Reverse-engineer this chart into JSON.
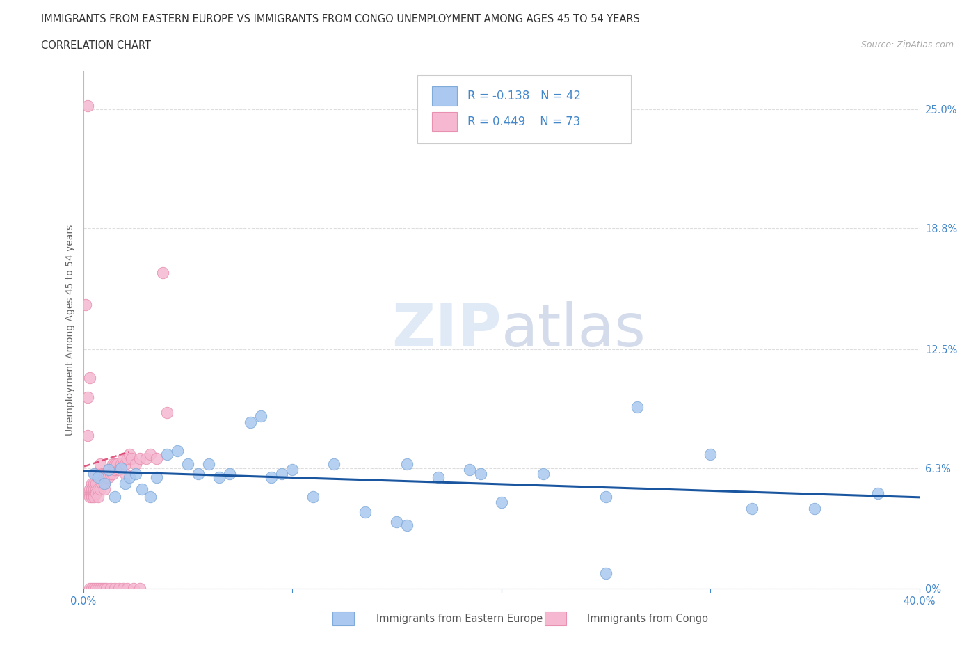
{
  "title_line1": "IMMIGRANTS FROM EASTERN EUROPE VS IMMIGRANTS FROM CONGO UNEMPLOYMENT AMONG AGES 45 TO 54 YEARS",
  "title_line2": "CORRELATION CHART",
  "source_text": "Source: ZipAtlas.com",
  "ylabel": "Unemployment Among Ages 45 to 54 years",
  "xlim": [
    0.0,
    0.4
  ],
  "ylim": [
    0.0,
    0.27
  ],
  "yticks": [
    0.0,
    0.063,
    0.125,
    0.188,
    0.25
  ],
  "ytick_labels": [
    "0%",
    "6.3%",
    "12.5%",
    "18.8%",
    "25.0%"
  ],
  "xticks": [
    0.0,
    0.1,
    0.2,
    0.3,
    0.4
  ],
  "xtick_labels_shown": [
    "0.0%",
    "",
    "",
    "",
    "40.0%"
  ],
  "blue_color": "#aac8f0",
  "pink_color": "#f5b8d0",
  "blue_edge": "#80aad8",
  "pink_edge": "#e890b0",
  "trend_blue_color": "#1a56a0",
  "trend_pink_color": "#d83060",
  "legend_R_blue": "R = -0.138",
  "legend_N_blue": "N = 42",
  "legend_R_pink": "R = 0.449",
  "legend_N_pink": "N = 73",
  "label_blue": "Immigrants from Eastern Europe",
  "label_pink": "Immigrants from Congo",
  "watermark_zip": "ZIP",
  "watermark_atlas": "atlas",
  "axis_label_color": "#4488cc",
  "background_color": "#ffffff",
  "grid_color": "#dddddd",
  "blue_scatter_x": [
    0.005,
    0.007,
    0.01,
    0.012,
    0.015,
    0.018,
    0.02,
    0.022,
    0.025,
    0.028,
    0.032,
    0.035,
    0.04,
    0.045,
    0.05,
    0.055,
    0.06,
    0.065,
    0.07,
    0.08,
    0.085,
    0.09,
    0.095,
    0.1,
    0.11,
    0.12,
    0.135,
    0.15,
    0.155,
    0.17,
    0.185,
    0.2,
    0.22,
    0.25,
    0.265,
    0.3,
    0.32,
    0.35,
    0.38,
    0.19,
    0.25,
    0.155
  ],
  "blue_scatter_y": [
    0.06,
    0.058,
    0.055,
    0.062,
    0.048,
    0.063,
    0.055,
    0.058,
    0.06,
    0.052,
    0.048,
    0.058,
    0.07,
    0.072,
    0.065,
    0.06,
    0.065,
    0.058,
    0.06,
    0.087,
    0.09,
    0.058,
    0.06,
    0.062,
    0.048,
    0.065,
    0.04,
    0.035,
    0.065,
    0.058,
    0.062,
    0.045,
    0.06,
    0.048,
    0.095,
    0.07,
    0.042,
    0.042,
    0.05,
    0.06,
    0.008,
    0.033
  ],
  "pink_scatter_x": [
    0.002,
    0.003,
    0.003,
    0.003,
    0.004,
    0.004,
    0.004,
    0.004,
    0.005,
    0.005,
    0.005,
    0.005,
    0.006,
    0.006,
    0.006,
    0.006,
    0.007,
    0.007,
    0.007,
    0.007,
    0.008,
    0.008,
    0.008,
    0.009,
    0.009,
    0.01,
    0.01,
    0.01,
    0.011,
    0.011,
    0.012,
    0.012,
    0.013,
    0.014,
    0.014,
    0.015,
    0.015,
    0.016,
    0.017,
    0.018,
    0.019,
    0.02,
    0.02,
    0.021,
    0.022,
    0.023,
    0.025,
    0.027,
    0.03,
    0.032,
    0.035,
    0.038,
    0.04,
    0.003,
    0.004,
    0.005,
    0.006,
    0.007,
    0.008,
    0.009,
    0.01,
    0.011,
    0.013,
    0.015,
    0.017,
    0.019,
    0.021,
    0.024,
    0.027,
    0.001,
    0.002,
    0.002,
    0.003
  ],
  "pink_scatter_y": [
    0.252,
    0.05,
    0.048,
    0.052,
    0.05,
    0.055,
    0.048,
    0.052,
    0.055,
    0.05,
    0.052,
    0.048,
    0.06,
    0.052,
    0.055,
    0.05,
    0.06,
    0.055,
    0.052,
    0.048,
    0.065,
    0.058,
    0.052,
    0.06,
    0.055,
    0.06,
    0.055,
    0.052,
    0.06,
    0.058,
    0.062,
    0.058,
    0.06,
    0.065,
    0.06,
    0.065,
    0.062,
    0.065,
    0.062,
    0.065,
    0.068,
    0.06,
    0.065,
    0.068,
    0.07,
    0.068,
    0.065,
    0.068,
    0.068,
    0.07,
    0.068,
    0.165,
    0.092,
    0.0,
    0.0,
    0.0,
    0.0,
    0.0,
    0.0,
    0.0,
    0.0,
    0.0,
    0.0,
    0.0,
    0.0,
    0.0,
    0.0,
    0.0,
    0.0,
    0.148,
    0.08,
    0.1,
    0.11
  ]
}
